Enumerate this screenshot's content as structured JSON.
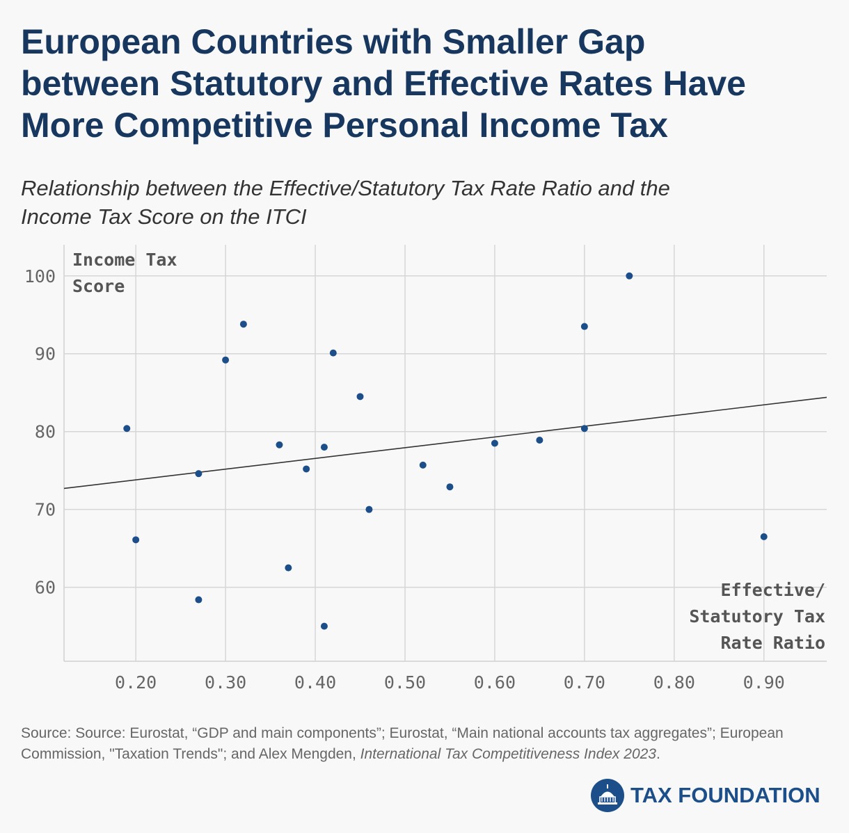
{
  "title": "European Countries with Smaller Gap\nbetween Statutory and Effective Rates Have\nMore Competitive Personal Income Tax",
  "subtitle": "Relationship between the Effective/Statutory Tax Rate Ratio and the\nIncome Tax Score on the ITCI",
  "chart_data": {
    "type": "scatter",
    "title": "European Countries with Smaller Gap between Statutory and Effective Rates Have More Competitive Personal Income Tax",
    "ylabel_lines": [
      "Income Tax",
      "Score"
    ],
    "xlabel_lines": [
      "Effective/",
      "Statutory Tax",
      "Rate Ratio"
    ],
    "xlim": [
      0.12,
      0.97
    ],
    "ylim": [
      50.5,
      104
    ],
    "x_ticks": [
      0.2,
      0.3,
      0.4,
      0.5,
      0.6,
      0.7,
      0.8,
      0.9
    ],
    "x_tick_labels": [
      "0.20",
      "0.30",
      "0.40",
      "0.50",
      "0.60",
      "0.70",
      "0.80",
      "0.90"
    ],
    "y_ticks": [
      60,
      70,
      80,
      90,
      100
    ],
    "y_tick_labels": [
      "60",
      "70",
      "80",
      "90",
      "100"
    ],
    "grid": true,
    "points": [
      {
        "x": 0.19,
        "y": 80.4
      },
      {
        "x": 0.2,
        "y": 66.1
      },
      {
        "x": 0.27,
        "y": 74.6
      },
      {
        "x": 0.27,
        "y": 58.4
      },
      {
        "x": 0.3,
        "y": 89.2
      },
      {
        "x": 0.32,
        "y": 93.8
      },
      {
        "x": 0.36,
        "y": 78.3
      },
      {
        "x": 0.37,
        "y": 62.5
      },
      {
        "x": 0.39,
        "y": 75.2
      },
      {
        "x": 0.41,
        "y": 78.0
      },
      {
        "x": 0.41,
        "y": 55.0
      },
      {
        "x": 0.42,
        "y": 90.1
      },
      {
        "x": 0.45,
        "y": 84.5
      },
      {
        "x": 0.46,
        "y": 70.0
      },
      {
        "x": 0.52,
        "y": 75.7
      },
      {
        "x": 0.55,
        "y": 72.9
      },
      {
        "x": 0.6,
        "y": 78.5
      },
      {
        "x": 0.65,
        "y": 78.9
      },
      {
        "x": 0.7,
        "y": 80.4
      },
      {
        "x": 0.7,
        "y": 93.5
      },
      {
        "x": 0.75,
        "y": 100.0
      },
      {
        "x": 0.9,
        "y": 66.5
      }
    ],
    "trendline": {
      "x": [
        0.12,
        0.97
      ],
      "y": [
        72.7,
        84.4
      ]
    },
    "colors": {
      "point": "#1c4f8a",
      "trendline": "#333333",
      "grid": "#d6d6d6"
    }
  },
  "source_prefix": "Source: Source: Eurostat, “GDP and main components”; Eurostat, “Main national accounts tax aggregates”; European Commission, \"Taxation Trends\"; and Alex Mengden, ",
  "source_italic": "International Tax Competitiveness Index 2023",
  "source_suffix": ".",
  "logo": {
    "text": "TAX FOUNDATION",
    "icon": "capitol-dome-icon"
  }
}
